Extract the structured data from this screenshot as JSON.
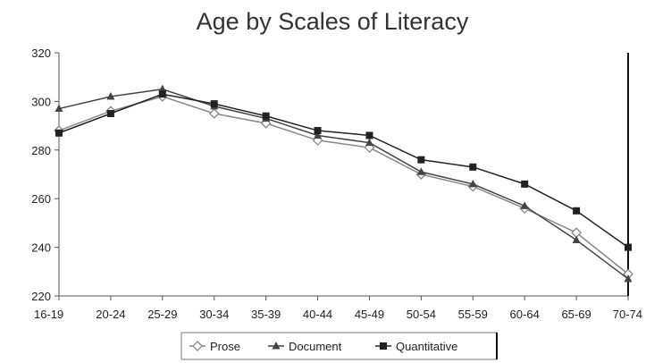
{
  "chart_data": {
    "type": "line",
    "title": "Age by Scales of Literacy",
    "xlabel": "",
    "ylabel": "",
    "categories": [
      "16-19",
      "20-24",
      "25-29",
      "30-34",
      "35-39",
      "40-44",
      "45-49",
      "50-54",
      "55-59",
      "60-64",
      "65-69",
      "70-74"
    ],
    "ylim": [
      220,
      320
    ],
    "yticks": [
      220,
      240,
      260,
      280,
      300,
      320
    ],
    "grid": false,
    "legend_position": "bottom",
    "series": [
      {
        "name": "Prose",
        "marker": "open-diamond",
        "color": "#888888",
        "values": [
          288,
          296,
          302,
          295,
          291,
          284,
          281,
          270,
          265,
          256,
          246,
          229
        ]
      },
      {
        "name": "Document",
        "marker": "triangle",
        "color": "#444444",
        "values": [
          297,
          302,
          305,
          298,
          293,
          286,
          283,
          271,
          266,
          257,
          243,
          227
        ]
      },
      {
        "name": "Quantitative",
        "marker": "square",
        "color": "#222222",
        "values": [
          287,
          295,
          303,
          299,
          294,
          288,
          286,
          276,
          273,
          266,
          255,
          240
        ]
      }
    ]
  }
}
